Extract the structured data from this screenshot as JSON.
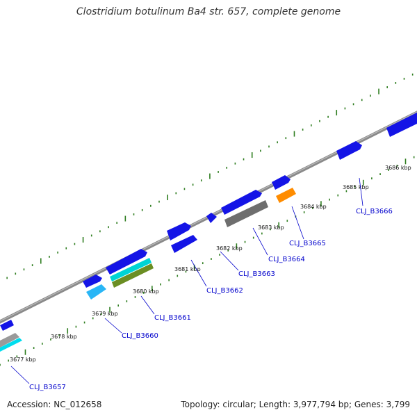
{
  "title": "Clostridium botulinum Ba4 str. 657, complete genome",
  "footer": {
    "accession": "Accession: NC_012658",
    "summary": "Topology: circular; Length: 3,977,794 bp; Genes: 3,799"
  },
  "colors": {
    "backbone": "#888888",
    "ticks": "#2e7d1f",
    "gene_forward": "#1010e0",
    "label": "#0000cc"
  },
  "scale_labels": [
    "3677 kbp",
    "3678 kbp",
    "3679 kbp",
    "3680 kbp",
    "3681 kbp",
    "3682 kbp",
    "3683 kbp",
    "3684 kbp",
    "3685 kbp",
    "3686 kbp"
  ],
  "gene_labels": [
    "CLJ_B3657",
    "CLJ_B3660",
    "CLJ_B3661",
    "CLJ_B3662",
    "CLJ_B3663",
    "CLJ_B3664",
    "CLJ_B3665",
    "CLJ_B3666"
  ]
}
